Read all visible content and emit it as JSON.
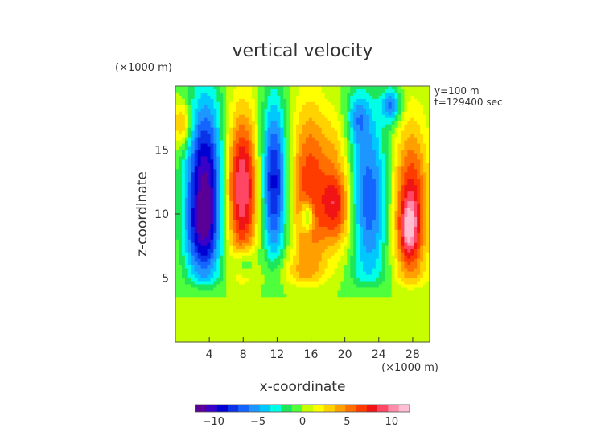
{
  "chart_data": {
    "type": "heatmap",
    "title": "vertical velocity",
    "xlabel": "x-coordinate",
    "ylabel": "z-coordinate",
    "x_unit": "(×1000 m)",
    "y_unit": "(×1000 m)",
    "annotations": [
      "y=100 m",
      "t=129400 sec"
    ],
    "xlim": [
      0,
      30
    ],
    "ylim": [
      0,
      20
    ],
    "x_ticks": [
      4,
      8,
      12,
      16,
      20,
      24,
      28
    ],
    "y_ticks": [
      5,
      10,
      15
    ],
    "colorbar": {
      "range": [
        -12,
        12
      ],
      "ticks": [
        -10,
        -5,
        0,
        5,
        10
      ],
      "colors": [
        "#5a0096",
        "#3a00c8",
        "#0000d2",
        "#0a32e6",
        "#1464ff",
        "#1e96ff",
        "#00c8ff",
        "#00ffe6",
        "#1ee65a",
        "#50ff3c",
        "#c8ff00",
        "#ffff00",
        "#ffd200",
        "#ffa000",
        "#ff6e00",
        "#ff3c00",
        "#f01414",
        "#ff4664",
        "#ff8caa",
        "#ffbed2"
      ]
    },
    "features": [
      {
        "x": 0.8,
        "z": 17.0,
        "sx": 0.8,
        "sz": 1.2,
        "w": 5
      },
      {
        "x": 3.5,
        "z": 12.0,
        "sx": 1.6,
        "sz": 5.0,
        "w": -11
      },
      {
        "x": 3.0,
        "z": 8.5,
        "sx": 1.3,
        "sz": 2.0,
        "w": -3
      },
      {
        "x": 7.8,
        "z": 12.0,
        "sx": 1.4,
        "sz": 4.2,
        "w": 10
      },
      {
        "x": 8.2,
        "z": 6.2,
        "sx": 1.0,
        "sz": 0.8,
        "w": -4
      },
      {
        "x": 11.6,
        "z": 12.5,
        "sx": 1.1,
        "sz": 4.5,
        "w": -9
      },
      {
        "x": 15.8,
        "z": 12.0,
        "sx": 1.5,
        "sz": 4.6,
        "w": 7
      },
      {
        "x": 15.6,
        "z": 9.8,
        "sx": 0.5,
        "sz": 0.9,
        "w": -6
      },
      {
        "x": 19.0,
        "z": 11.0,
        "sx": 1.2,
        "sz": 1.6,
        "w": 6
      },
      {
        "x": 19.0,
        "z": 14.5,
        "sx": 1.3,
        "sz": 2.5,
        "w": 3
      },
      {
        "x": 19.2,
        "z": 8.5,
        "sx": 1.6,
        "sz": 1.5,
        "w": 3
      },
      {
        "x": 22.8,
        "z": 11.0,
        "sx": 1.6,
        "sz": 5.0,
        "w": -7
      },
      {
        "x": 21.5,
        "z": 17.5,
        "sx": 1.0,
        "sz": 1.5,
        "w": -4
      },
      {
        "x": 27.8,
        "z": 10.5,
        "sx": 1.5,
        "sz": 4.5,
        "w": 8
      },
      {
        "x": 27.5,
        "z": 8.8,
        "sx": 0.7,
        "sz": 1.6,
        "w": 5
      },
      {
        "x": 25.5,
        "z": 18.5,
        "sx": 0.8,
        "sz": 1.0,
        "w": -6
      },
      {
        "x": 14.0,
        "z": 5.5,
        "sx": 3.0,
        "sz": 1.0,
        "w": 2
      }
    ]
  }
}
